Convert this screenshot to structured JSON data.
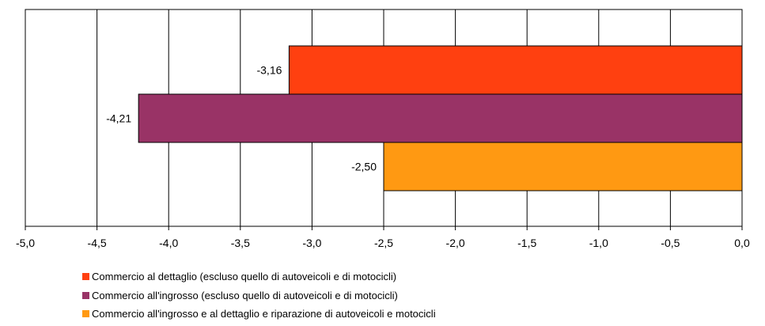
{
  "chart_data": {
    "type": "bar",
    "orientation": "horizontal",
    "title": "",
    "xlabel": "",
    "ylabel": "",
    "xlim": [
      -5.0,
      0.0
    ],
    "x_tick_step": 0.5,
    "x_tick_labels": [
      "-5,0",
      "-4,5",
      "-4,0",
      "-3,5",
      "-3,0",
      "-2,5",
      "-2,0",
      "-1,5",
      "-1,0",
      "-0,5",
      "0,0"
    ],
    "grid": "vertical",
    "legend_position": "bottom",
    "series": [
      {
        "name": "Commercio al dettaglio (escluso quello di autoveicoli e di motocicli)",
        "value": -3.16,
        "label": "-3,16",
        "color": "#ff4010"
      },
      {
        "name": "Commercio all'ingrosso (escluso quello di autoveicoli e di motocicli)",
        "value": -4.21,
        "label": "-4,21",
        "color": "#993366"
      },
      {
        "name": "Commercio all'ingrosso e al dettaglio e riparazione di autoveicoli e motocicli",
        "value": -2.5,
        "label": "-2,50",
        "color": "#ff9912"
      }
    ]
  }
}
